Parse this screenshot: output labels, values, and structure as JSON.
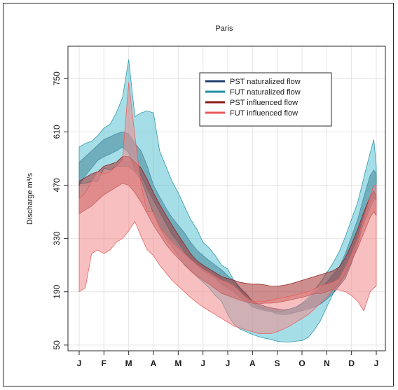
{
  "chart_data": {
    "type": "area",
    "title": "Paris",
    "xlabel": "",
    "ylabel": "Discharge m³/s",
    "ylim": [
      35,
      835
    ],
    "xlim": [
      0,
      12.1
    ],
    "y_ticks": [
      50,
      190,
      330,
      470,
      610,
      750
    ],
    "categories": [
      "J",
      "F",
      "M",
      "A",
      "M",
      "J",
      "J",
      "A",
      "S",
      "O",
      "N",
      "D",
      "J"
    ],
    "grid": true,
    "legend_position": "top-right",
    "x": [
      0,
      0.25,
      0.5,
      0.75,
      1,
      1.25,
      1.5,
      1.75,
      2,
      2.25,
      2.5,
      2.75,
      3,
      3.25,
      3.5,
      3.75,
      4,
      4.25,
      4.5,
      4.75,
      5,
      5.25,
      5.5,
      5.75,
      6,
      6.25,
      6.5,
      6.75,
      7,
      7.25,
      7.5,
      7.75,
      8,
      8.25,
      8.5,
      8.75,
      9,
      9.25,
      9.5,
      9.75,
      10,
      10.25,
      10.5,
      10.75,
      11,
      11.25,
      11.5,
      11.75,
      11.9,
      12
    ],
    "series": [
      {
        "name": "PST naturalized flow",
        "color": "#1f3f6e",
        "fill": "#2c3e50",
        "low": [
          470,
          495,
          515,
          535,
          545,
          552,
          560,
          570,
          555,
          510,
          495,
          460,
          430,
          400,
          370,
          340,
          320,
          295,
          275,
          260,
          245,
          235,
          225,
          210,
          200,
          190,
          175,
          165,
          150,
          145,
          140,
          138,
          132,
          130,
          132,
          136,
          140,
          145,
          150,
          158,
          170,
          185,
          205,
          225,
          265,
          315,
          375,
          420,
          440,
          430
        ],
        "high": [
          530,
          545,
          560,
          575,
          590,
          597,
          605,
          610,
          605,
          580,
          560,
          520,
          470,
          440,
          410,
          385,
          365,
          345,
          320,
          300,
          285,
          272,
          260,
          248,
          232,
          220,
          200,
          185,
          165,
          158,
          152,
          148,
          145,
          142,
          145,
          150,
          158,
          170,
          185,
          200,
          215,
          235,
          255,
          290,
          335,
          380,
          440,
          495,
          510,
          500
        ]
      },
      {
        "name": "FUT naturalized flow",
        "color": "#1f8fa3",
        "fill": "#5cc3d3",
        "low": [
          475,
          475,
          480,
          480,
          515,
          510,
          520,
          520,
          520,
          505,
          485,
          440,
          395,
          360,
          330,
          310,
          285,
          260,
          245,
          230,
          215,
          200,
          180,
          165,
          130,
          105,
          92,
          85,
          78,
          72,
          68,
          65,
          60,
          58,
          58,
          60,
          62,
          70,
          90,
          115,
          150,
          185,
          215,
          245,
          285,
          325,
          370,
          410,
          430,
          440
        ],
        "high": [
          570,
          580,
          585,
          600,
          620,
          630,
          660,
          700,
          800,
          650,
          660,
          665,
          660,
          560,
          520,
          480,
          450,
          415,
          380,
          355,
          320,
          305,
          285,
          260,
          250,
          220,
          195,
          175,
          160,
          150,
          145,
          140,
          138,
          140,
          145,
          150,
          160,
          175,
          195,
          215,
          240,
          265,
          295,
          335,
          380,
          425,
          490,
          555,
          590,
          520
        ]
      },
      {
        "name": "PST influenced flow",
        "color": "#8b1a1a",
        "fill": "#a83232",
        "low": [
          395,
          405,
          415,
          430,
          445,
          455,
          465,
          475,
          470,
          450,
          425,
          395,
          365,
          340,
          315,
          295,
          278,
          262,
          245,
          232,
          220,
          210,
          198,
          186,
          180,
          174,
          168,
          163,
          160,
          158,
          160,
          160,
          162,
          165,
          168,
          172,
          175,
          180,
          185,
          185,
          190,
          196,
          210,
          235,
          270,
          305,
          345,
          385,
          400,
          390
        ],
        "high": [
          480,
          490,
          500,
          505,
          520,
          525,
          530,
          545,
          545,
          530,
          515,
          485,
          450,
          420,
          392,
          365,
          340,
          315,
          290,
          272,
          260,
          250,
          240,
          230,
          225,
          220,
          215,
          212,
          210,
          210,
          208,
          205,
          205,
          207,
          210,
          215,
          220,
          225,
          230,
          235,
          240,
          245,
          255,
          280,
          315,
          355,
          400,
          440,
          455,
          440
        ]
      },
      {
        "name": "FUT influenced flow",
        "color": "#e85a5a",
        "fill": "#f08a8a",
        "low": [
          190,
          200,
          290,
          300,
          290,
          300,
          320,
          330,
          350,
          375,
          335,
          300,
          285,
          260,
          240,
          220,
          205,
          190,
          175,
          162,
          150,
          140,
          130,
          120,
          110,
          100,
          95,
          90,
          85,
          80,
          80,
          80,
          85,
          92,
          100,
          110,
          120,
          130,
          145,
          160,
          175,
          195,
          195,
          190,
          180,
          165,
          140,
          190,
          200,
          205
        ],
        "high": [
          435,
          450,
          480,
          505,
          500,
          505,
          520,
          535,
          740,
          600,
          470,
          400,
          400,
          360,
          340,
          320,
          305,
          290,
          275,
          262,
          250,
          240,
          230,
          220,
          215,
          205,
          190,
          175,
          165,
          165,
          165,
          168,
          172,
          175,
          178,
          182,
          186,
          190,
          198,
          205,
          210,
          215,
          225,
          255,
          290,
          330,
          385,
          440,
          470,
          470
        ]
      }
    ]
  }
}
